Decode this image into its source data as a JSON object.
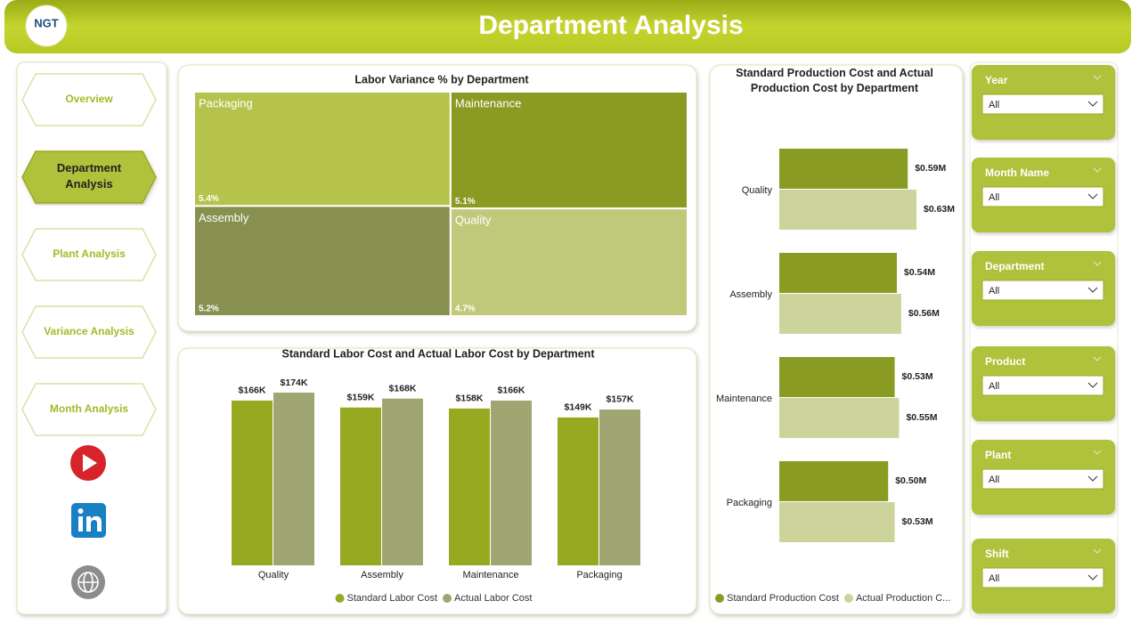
{
  "header": {
    "logo": "NGT",
    "title": "Department Analysis"
  },
  "nav": [
    "Overview",
    "Department Analysis",
    "Plant Analysis",
    "Variance Analysis",
    "Month Analysis"
  ],
  "chart_data": [
    {
      "type": "treemap",
      "title": "Labor Variance % by Department",
      "categories": [
        "Packaging",
        "Maintenance",
        "Assembly",
        "Quality"
      ],
      "values": [
        5.4,
        5.1,
        5.2,
        4.7
      ],
      "value_labels": [
        "5.4%",
        "5.1%",
        "5.2%",
        "4.7%"
      ],
      "colors": [
        "#b5c34c",
        "#8a9b23",
        "#87904f",
        "#c0c97a"
      ]
    },
    {
      "type": "bar",
      "title": "Standard Labor Cost and Actual Labor Cost by Department",
      "categories": [
        "Quality",
        "Assembly",
        "Maintenance",
        "Packaging"
      ],
      "series": [
        {
          "name": "Standard Labor Cost",
          "color": "#97a921",
          "values": [
            166,
            159,
            158,
            149
          ],
          "value_labels": [
            "$166K",
            "$159K",
            "$158K",
            "$149K"
          ]
        },
        {
          "name": "Actual Labor Cost",
          "color": "#a0a672",
          "values": [
            174,
            168,
            166,
            157
          ],
          "value_labels": [
            "$174K",
            "$168K",
            "$166K",
            "$157K"
          ]
        }
      ]
    },
    {
      "type": "hbar",
      "title": "Standard Production Cost and Actual Production Cost by Department",
      "categories": [
        "Quality",
        "Assembly",
        "Maintenance",
        "Packaging"
      ],
      "series": [
        {
          "name": "Standard Production Cost",
          "color": "#8a9b23",
          "values": [
            0.59,
            0.54,
            0.53,
            0.5
          ],
          "value_labels": [
            "$0.59M",
            "$0.54M",
            "$0.53M",
            "$0.50M"
          ]
        },
        {
          "name": "Actual Production C...",
          "color": "#ccd49c",
          "values": [
            0.63,
            0.56,
            0.55,
            0.53
          ],
          "value_labels": [
            "$0.63M",
            "$0.56M",
            "$0.55M",
            "$0.53M"
          ]
        }
      ]
    }
  ],
  "filters": [
    {
      "label": "Year",
      "value": "All"
    },
    {
      "label": "Month Name",
      "value": "All"
    },
    {
      "label": "Department",
      "value": "All"
    },
    {
      "label": "Product",
      "value": "All"
    },
    {
      "label": "Plant",
      "value": "All"
    },
    {
      "label": "Shift",
      "value": "All"
    }
  ]
}
